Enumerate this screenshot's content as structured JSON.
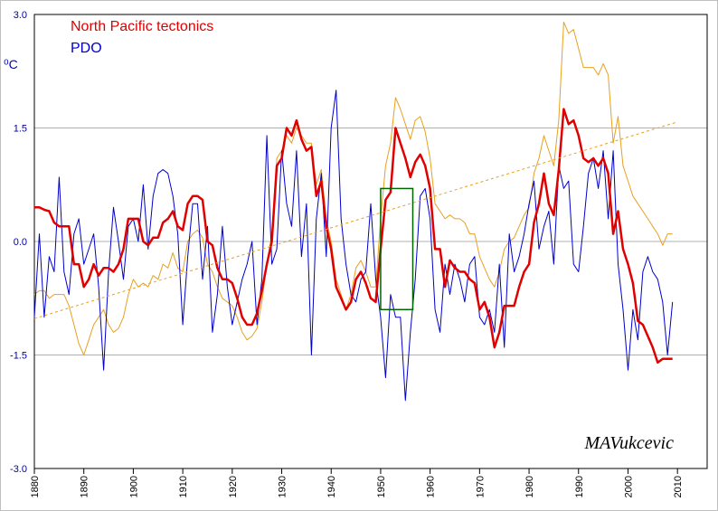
{
  "chart_data": {
    "type": "line",
    "ylabel": "⁰C",
    "annotation": "MAVukcevic",
    "xlim": [
      1880,
      2016
    ],
    "ylim": [
      -3,
      3
    ],
    "xticks": [
      1880,
      1890,
      1900,
      1910,
      1920,
      1930,
      1940,
      1950,
      1960,
      1970,
      1980,
      1990,
      2000,
      2010
    ],
    "yticks": [
      {
        "value": -3,
        "label": "-3.0"
      },
      {
        "value": -1.5,
        "label": "-1.5"
      },
      {
        "value": 0,
        "label": "0.0"
      },
      {
        "value": 1.5,
        "label": "1.5"
      },
      {
        "value": 3,
        "label": "3.0"
      }
    ],
    "grid": true,
    "legend": "upper left",
    "x": [
      1880,
      1881,
      1882,
      1883,
      1884,
      1885,
      1886,
      1887,
      1888,
      1889,
      1890,
      1891,
      1892,
      1893,
      1894,
      1895,
      1896,
      1897,
      1898,
      1899,
      1900,
      1901,
      1902,
      1903,
      1904,
      1905,
      1906,
      1907,
      1908,
      1909,
      1910,
      1911,
      1912,
      1913,
      1914,
      1915,
      1916,
      1917,
      1918,
      1919,
      1920,
      1921,
      1922,
      1923,
      1924,
      1925,
      1926,
      1927,
      1928,
      1929,
      1930,
      1931,
      1932,
      1933,
      1934,
      1935,
      1936,
      1937,
      1938,
      1939,
      1940,
      1941,
      1942,
      1943,
      1944,
      1945,
      1946,
      1947,
      1948,
      1949,
      1950,
      1951,
      1952,
      1953,
      1954,
      1955,
      1956,
      1957,
      1958,
      1959,
      1960,
      1961,
      1962,
      1963,
      1964,
      1965,
      1966,
      1967,
      1968,
      1969,
      1970,
      1971,
      1972,
      1973,
      1974,
      1975,
      1976,
      1977,
      1978,
      1979,
      1980,
      1981,
      1982,
      1983,
      1984,
      1985,
      1986,
      1987,
      1988,
      1989,
      1990,
      1991,
      1992,
      1993,
      1994,
      1995,
      1996,
      1997,
      1998,
      1999,
      2000,
      2001,
      2002,
      2003,
      2004,
      2005,
      2006,
      2007,
      2008,
      2009
    ],
    "series": [
      {
        "color": "#e8a020",
        "width": 1,
        "values": [
          -0.7,
          -0.65,
          -0.65,
          -0.75,
          -0.7,
          -0.7,
          -0.7,
          -0.85,
          -1.1,
          -1.35,
          -1.5,
          -1.3,
          -1.1,
          -1.0,
          -0.9,
          -1.1,
          -1.2,
          -1.15,
          -1.0,
          -0.7,
          -0.5,
          -0.6,
          -0.55,
          -0.6,
          -0.45,
          -0.5,
          -0.3,
          -0.35,
          -0.15,
          -0.35,
          -0.4,
          0.0,
          0.1,
          0.15,
          0.05,
          -0.3,
          -0.4,
          -0.6,
          -0.75,
          -0.8,
          -0.85,
          -1.0,
          -1.2,
          -1.3,
          -1.25,
          -1.15,
          -0.8,
          -0.3,
          0.1,
          1.1,
          1.2,
          1.4,
          1.3,
          1.5,
          1.4,
          1.3,
          1.3,
          0.75,
          0.95,
          0.3,
          0.0,
          -0.5,
          -0.7,
          -0.9,
          -0.7,
          -0.35,
          -0.25,
          -0.4,
          -0.6,
          -0.6,
          0.3,
          1.0,
          1.3,
          1.9,
          1.75,
          1.55,
          1.35,
          1.6,
          1.65,
          1.45,
          1.1,
          0.5,
          0.4,
          0.3,
          0.35,
          0.3,
          0.3,
          0.25,
          0.1,
          0.1,
          -0.2,
          -0.35,
          -0.5,
          -0.6,
          -0.4,
          -0.1,
          0.0,
          0.05,
          0.2,
          0.35,
          0.45,
          0.9,
          1.1,
          1.4,
          1.2,
          1.0,
          1.6,
          2.9,
          2.75,
          2.8,
          2.55,
          2.3,
          2.3,
          2.3,
          2.2,
          2.35,
          2.2,
          1.3,
          1.65,
          1.0,
          0.8,
          0.6,
          0.5,
          0.4,
          0.3,
          0.2,
          0.1,
          -0.05,
          0.1,
          0.1
        ]
      },
      {
        "name": "PDO",
        "color": "#0000cc",
        "width": 1,
        "values": [
          -1.0,
          0.1,
          -1.0,
          -0.2,
          -0.4,
          0.85,
          -0.4,
          -0.7,
          0.1,
          0.3,
          -0.3,
          -0.1,
          0.1,
          -0.6,
          -1.7,
          -0.4,
          0.45,
          0.0,
          -0.5,
          0.2,
          0.3,
          0.0,
          0.75,
          -0.1,
          0.6,
          0.9,
          0.95,
          0.9,
          0.6,
          0.1,
          -1.1,
          -0.2,
          0.5,
          0.5,
          -0.5,
          0.2,
          -1.2,
          -0.7,
          0.2,
          -0.6,
          -1.1,
          -0.8,
          -0.5,
          -0.3,
          0.0,
          -1.1,
          -0.5,
          1.4,
          -0.3,
          -0.1,
          1.2,
          0.5,
          0.2,
          1.2,
          -0.2,
          0.5,
          -1.5,
          0.3,
          0.9,
          -0.2,
          1.5,
          2.0,
          0.3,
          -0.3,
          -0.7,
          -0.8,
          -0.5,
          -0.4,
          0.5,
          -0.5,
          -1.0,
          -1.8,
          -0.7,
          -1.0,
          -1.0,
          -2.1,
          -1.2,
          -0.5,
          0.6,
          0.7,
          0.3,
          -0.9,
          -1.2,
          -0.3,
          -0.7,
          -0.3,
          -0.5,
          -0.8,
          -0.3,
          -0.2,
          -1.0,
          -1.1,
          -0.9,
          -1.2,
          -0.3,
          -1.4,
          0.1,
          -0.4,
          -0.2,
          0.1,
          0.5,
          0.8,
          -0.1,
          0.2,
          0.4,
          -0.3,
          1.0,
          0.7,
          0.8,
          -0.3,
          -0.4,
          0.2,
          0.9,
          1.1,
          0.7,
          1.2,
          0.3,
          1.2,
          -0.3,
          -0.9,
          -1.7,
          -0.9,
          -1.3,
          -0.4,
          -0.2,
          -0.4,
          -0.5,
          -0.8,
          -1.5,
          -0.8
        ]
      },
      {
        "name": "North Pacific tectonics",
        "color": "#e00000",
        "width": 2.5,
        "values": [
          0.45,
          0.45,
          0.42,
          0.4,
          0.25,
          0.2,
          0.2,
          0.2,
          -0.3,
          -0.3,
          -0.6,
          -0.5,
          -0.3,
          -0.45,
          -0.35,
          -0.35,
          -0.4,
          -0.3,
          -0.1,
          0.3,
          0.3,
          0.3,
          0.0,
          -0.05,
          0.05,
          0.05,
          0.25,
          0.3,
          0.4,
          0.2,
          0.15,
          0.5,
          0.6,
          0.6,
          0.55,
          0.0,
          -0.05,
          -0.35,
          -0.5,
          -0.5,
          -0.55,
          -0.75,
          -1.0,
          -1.1,
          -1.1,
          -0.95,
          -0.65,
          -0.3,
          0.0,
          1.0,
          1.1,
          1.5,
          1.4,
          1.6,
          1.35,
          1.2,
          1.25,
          0.6,
          0.8,
          0.2,
          -0.1,
          -0.6,
          -0.75,
          -0.9,
          -0.8,
          -0.5,
          -0.4,
          -0.55,
          -0.75,
          -0.8,
          -0.1,
          0.55,
          0.65,
          1.5,
          1.3,
          1.1,
          0.85,
          1.05,
          1.15,
          1.0,
          0.7,
          -0.1,
          -0.1,
          -0.6,
          -0.25,
          -0.35,
          -0.4,
          -0.4,
          -0.5,
          -0.55,
          -0.9,
          -0.8,
          -1.0,
          -1.4,
          -1.2,
          -0.85,
          -0.85,
          -0.85,
          -0.6,
          -0.4,
          -0.3,
          0.25,
          0.5,
          0.9,
          0.5,
          0.35,
          0.95,
          1.75,
          1.55,
          1.6,
          1.4,
          1.1,
          1.05,
          1.1,
          1.0,
          1.1,
          0.9,
          0.1,
          0.4,
          -0.1,
          -0.3,
          -0.55,
          -1.05,
          -1.1,
          -1.25,
          -1.4,
          -1.6,
          -1.55,
          -1.55,
          -1.55
        ]
      },
      {
        "color": "#e8a020",
        "width": 1,
        "dashed": true,
        "x": [
          1880,
          2010
        ],
        "values": [
          -1.02,
          1.58
        ]
      }
    ],
    "highlight": {
      "x": [
        1950,
        1956.5
      ],
      "y": [
        -0.9,
        0.7
      ],
      "color": "#006400"
    }
  }
}
